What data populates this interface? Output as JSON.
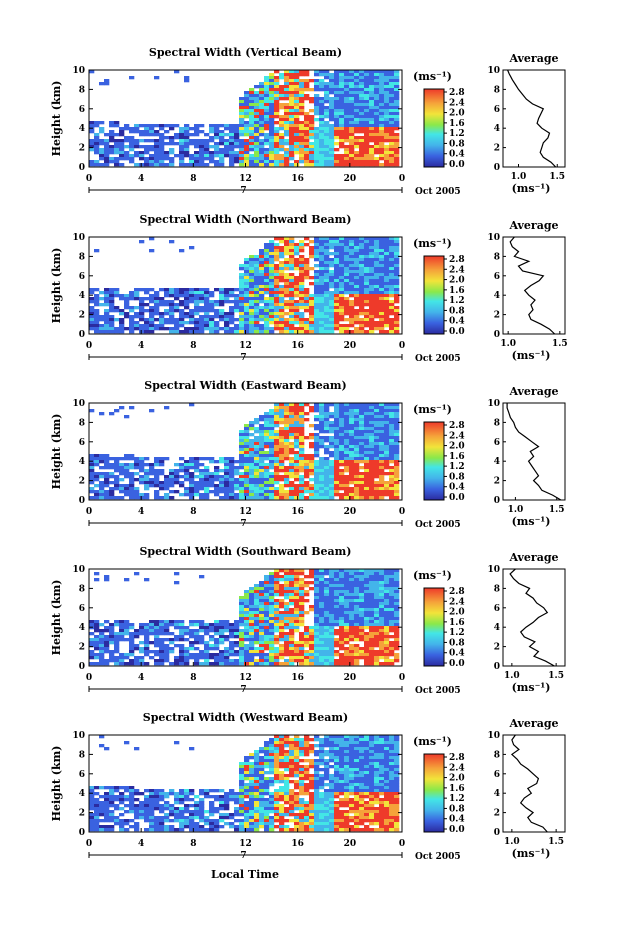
{
  "figure": {
    "x_title": "Local Time",
    "y_title": "Height (km)",
    "date_label": "Oct 2005",
    "day_marker": "7",
    "colorbar_unit": "(ms⁻¹)",
    "colorbar_ticks": [
      "2.8",
      "2.4",
      "2.0",
      "1.6",
      "1.2",
      "0.8",
      "0.4",
      "0.0"
    ],
    "avg_title": "Average",
    "avg_xlabel": "(ms⁻¹)",
    "colors": {
      "dark_blue": "#2b2ba0",
      "blue": "#3a62e0",
      "sky": "#43b4ea",
      "cyan": "#43e6e6",
      "green": "#8ae84a",
      "yellow": "#f2e43a",
      "orange": "#f5a23a",
      "red": "#ee3a2a",
      "white": "#ffffff",
      "black": "#000000"
    }
  },
  "chart_data": [
    {
      "type": "heatmap",
      "title": "Spectral Width (Vertical Beam)",
      "x_ticks": [
        "0",
        "4",
        "8",
        "12",
        "16",
        "20",
        "0"
      ],
      "y_ticks": [
        "0",
        "2",
        "4",
        "6",
        "8",
        "10"
      ],
      "xlim": [
        0,
        24
      ],
      "ylim": [
        0,
        10
      ],
      "avg_profile": {
        "type": "line",
        "x_ticks": [
          "1.0",
          "1.5"
        ],
        "y_ticks": [
          "0",
          "2",
          "4",
          "6",
          "8",
          "10"
        ],
        "xlim": [
          0.8,
          1.6
        ],
        "ylim": [
          0,
          10
        ],
        "x": [
          1.48,
          1.42,
          1.32,
          1.28,
          1.3,
          1.32,
          1.38,
          1.4,
          1.3,
          1.24,
          1.26,
          1.32,
          1.18,
          1.1,
          1.05,
          1.0,
          0.96,
          0.92,
          0.9,
          0.88,
          0.86
        ],
        "y": [
          0.0,
          0.5,
          1.0,
          1.5,
          2.0,
          2.5,
          3.0,
          3.5,
          4.0,
          4.5,
          5.0,
          6.0,
          6.5,
          7.0,
          7.5,
          8.0,
          8.5,
          9.0,
          9.3,
          9.6,
          10.0
        ]
      }
    },
    {
      "type": "heatmap",
      "title": "Spectral Width (Northward Beam)",
      "x_ticks": [
        "0",
        "4",
        "8",
        "12",
        "16",
        "20",
        "0"
      ],
      "y_ticks": [
        "0",
        "2",
        "4",
        "6",
        "8",
        "10"
      ],
      "xlim": [
        0,
        24
      ],
      "ylim": [
        0,
        10
      ],
      "avg_profile": {
        "type": "line",
        "x_ticks": [
          "1.0",
          "1.5"
        ],
        "y_ticks": [
          "0",
          "2",
          "4",
          "6",
          "8",
          "10"
        ],
        "xlim": [
          0.95,
          1.55
        ],
        "ylim": [
          0,
          10
        ],
        "x": [
          1.45,
          1.4,
          1.32,
          1.22,
          1.2,
          1.24,
          1.22,
          1.26,
          1.2,
          1.16,
          1.22,
          1.3,
          1.34,
          1.14,
          1.1,
          1.2,
          1.06,
          1.1,
          1.04,
          1.02,
          1.06
        ],
        "y": [
          0.0,
          0.5,
          1.0,
          1.5,
          2.0,
          2.5,
          3.0,
          3.5,
          4.0,
          4.5,
          5.0,
          5.5,
          6.0,
          6.5,
          7.0,
          7.5,
          8.0,
          8.5,
          9.0,
          9.5,
          10.0
        ]
      }
    },
    {
      "type": "heatmap",
      "title": "Spectral Width (Eastward Beam)",
      "x_ticks": [
        "0",
        "4",
        "8",
        "12",
        "16",
        "20",
        "0"
      ],
      "y_ticks": [
        "0",
        "2",
        "4",
        "6",
        "8",
        "10"
      ],
      "xlim": [
        0,
        24
      ],
      "ylim": [
        0,
        10
      ],
      "avg_profile": {
        "type": "line",
        "x_ticks": [
          "1.0",
          "1.5"
        ],
        "y_ticks": [
          "0",
          "2",
          "4",
          "6",
          "8",
          "10"
        ],
        "xlim": [
          0.85,
          1.6
        ],
        "ylim": [
          0,
          10
        ],
        "x": [
          1.55,
          1.45,
          1.32,
          1.28,
          1.22,
          1.28,
          1.24,
          1.2,
          1.16,
          1.22,
          1.18,
          1.28,
          1.2,
          1.12,
          1.04,
          1.0,
          0.98,
          0.94,
          0.92,
          0.9,
          0.9
        ],
        "y": [
          0.0,
          0.5,
          1.0,
          1.5,
          2.0,
          2.5,
          3.0,
          3.5,
          4.0,
          4.5,
          5.0,
          5.5,
          6.0,
          6.5,
          7.0,
          7.5,
          8.0,
          8.5,
          9.0,
          9.5,
          10.0
        ]
      }
    },
    {
      "type": "heatmap",
      "title": "Spectral Width (Southward Beam)",
      "x_ticks": [
        "0",
        "4",
        "8",
        "12",
        "16",
        "20",
        "0"
      ],
      "y_ticks": [
        "0",
        "2",
        "4",
        "6",
        "8",
        "10"
      ],
      "xlim": [
        0,
        24
      ],
      "ylim": [
        0,
        10
      ],
      "avg_profile": {
        "type": "line",
        "x_ticks": [
          "1.0",
          "1.5"
        ],
        "y_ticks": [
          "0",
          "2",
          "4",
          "6",
          "8",
          "10"
        ],
        "xlim": [
          0.9,
          1.6
        ],
        "ylim": [
          0,
          10
        ],
        "x": [
          1.48,
          1.38,
          1.25,
          1.3,
          1.2,
          1.26,
          1.14,
          1.1,
          1.16,
          1.24,
          1.3,
          1.4,
          1.36,
          1.28,
          1.24,
          1.16,
          1.2,
          1.08,
          1.02,
          0.98,
          1.04
        ],
        "y": [
          0.0,
          0.5,
          1.0,
          1.5,
          2.0,
          2.5,
          3.0,
          3.5,
          4.0,
          4.5,
          5.0,
          5.5,
          6.0,
          6.5,
          7.0,
          7.5,
          8.0,
          8.5,
          9.0,
          9.5,
          10.0
        ]
      }
    },
    {
      "type": "heatmap",
      "title": "Spectral Width (Westward Beam)",
      "x_ticks": [
        "0",
        "4",
        "8",
        "12",
        "16",
        "20",
        "0"
      ],
      "y_ticks": [
        "0",
        "2",
        "4",
        "6",
        "8",
        "10"
      ],
      "xlim": [
        0,
        24
      ],
      "ylim": [
        0,
        10
      ],
      "avg_profile": {
        "type": "line",
        "x_ticks": [
          "1.0",
          "1.5"
        ],
        "y_ticks": [
          "0",
          "2",
          "4",
          "6",
          "8",
          "10"
        ],
        "xlim": [
          0.9,
          1.6
        ],
        "ylim": [
          0,
          10
        ],
        "x": [
          1.4,
          1.35,
          1.22,
          1.18,
          1.24,
          1.16,
          1.1,
          1.14,
          1.22,
          1.18,
          1.28,
          1.3,
          1.24,
          1.18,
          1.1,
          1.06,
          1.0,
          1.08,
          1.02,
          1.0,
          1.04
        ],
        "y": [
          0.0,
          0.5,
          1.0,
          1.5,
          2.0,
          2.5,
          3.0,
          3.5,
          4.0,
          4.5,
          5.0,
          5.5,
          6.0,
          6.5,
          7.0,
          7.5,
          8.0,
          8.5,
          9.0,
          9.5,
          10.0
        ]
      }
    }
  ]
}
